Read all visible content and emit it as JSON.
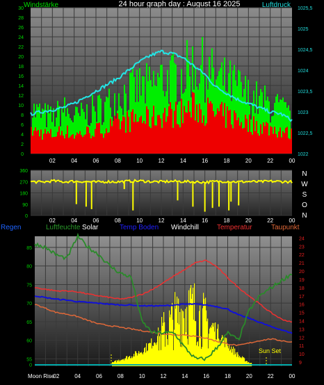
{
  "top": {
    "title": "24 hour graph day : August 16 2025",
    "left_label": "Windstärke",
    "right_label": "Luftdruck",
    "left_ticks": [
      "0",
      "2",
      "4",
      "6",
      "8",
      "10",
      "12",
      "14",
      "16",
      "18",
      "20",
      "22",
      "24",
      "26",
      "28",
      "30"
    ],
    "right_ticks": [
      "1022",
      "1022,5",
      "1023",
      "1023,5",
      "1024",
      "1024,5",
      "1025",
      "1025,5"
    ],
    "x_ticks": [
      "02",
      "04",
      "06",
      "08",
      "10",
      "12",
      "14",
      "16",
      "18",
      "20",
      "22",
      "00"
    ]
  },
  "mid": {
    "left_ticks": [
      "0",
      "90",
      "180",
      "270",
      "360"
    ],
    "right_labels": [
      "N",
      "W",
      "S",
      "O",
      "N"
    ],
    "x_ticks": [
      "02",
      "04",
      "06",
      "08",
      "10",
      "12",
      "14",
      "16",
      "18",
      "20",
      "22",
      "00"
    ]
  },
  "bottom": {
    "legend": [
      "Regen",
      "Luftfeuchte",
      "Solar",
      "Temp Boden",
      "Windchill",
      "Temperatur",
      "Taupunkt"
    ],
    "left_ticks": [
      "0",
      "55",
      "60",
      "65",
      "70",
      "75",
      "80",
      "85"
    ],
    "right_ticks": [
      "9",
      "10",
      "11",
      "12",
      "13",
      "14",
      "15",
      "16",
      "17",
      "18",
      "19",
      "20",
      "21",
      "22",
      "23",
      "24"
    ],
    "x_ticks": [
      "Moon Rise",
      "02",
      "04",
      "06",
      "08",
      "10",
      "12",
      "14",
      "16",
      "18",
      "20",
      "22",
      "00"
    ],
    "sunset_label": "Sun Set"
  },
  "colors": {
    "gust": "#00ee00",
    "wind": "#ee0000",
    "pressure": "#22e6e6",
    "direction": "#ffff00",
    "humidity": "#2a8a2a",
    "solar": "#ffff00",
    "soil_temp": "#1010d8",
    "temperature": "#ee3030",
    "dewpoint": "#e06838",
    "rain": "#00aaaa"
  },
  "chart_data": [
    {
      "type": "bar",
      "ylim": [
        0,
        30
      ],
      "y2lim": [
        1022,
        1025.5
      ],
      "x": [
        0,
        1,
        2,
        3,
        4,
        5,
        6,
        7,
        8,
        9,
        10,
        11,
        12,
        13,
        14,
        15,
        16,
        17,
        18,
        19,
        20,
        21,
        22,
        23,
        24
      ],
      "series": [
        {
          "name": "Windstärke",
          "values": [
            10,
            9,
            8,
            10,
            8,
            9,
            10,
            11,
            13,
            14,
            15,
            15,
            17,
            17,
            18,
            20,
            19,
            17,
            16,
            15,
            13,
            12,
            11,
            10,
            8
          ]
        },
        {
          "name": "Luftdruck",
          "values": [
            1022.95,
            1023.0,
            1023.05,
            1023.1,
            1023.2,
            1023.35,
            1023.5,
            1023.65,
            1023.8,
            1024.0,
            1024.2,
            1024.35,
            1024.45,
            1024.4,
            1024.3,
            1024.1,
            1023.9,
            1023.6,
            1023.45,
            1023.3,
            1023.2,
            1023.1,
            1023.0,
            1022.95,
            1022.8
          ]
        }
      ]
    },
    {
      "type": "line",
      "ylim": [
        0,
        360
      ],
      "x": [
        0,
        1,
        2,
        3,
        4,
        5,
        6,
        7,
        8,
        9,
        10,
        11,
        12,
        13,
        14,
        15,
        16,
        17,
        18,
        19,
        20,
        21,
        22,
        23,
        24
      ],
      "series": [
        {
          "name": "wind direction",
          "values": [
            270,
            265,
            275,
            268,
            272,
            270,
            265,
            270,
            268,
            272,
            275,
            270,
            268,
            272,
            270,
            268,
            265,
            270,
            272,
            268,
            270,
            268,
            272,
            270,
            268
          ]
        }
      ]
    },
    {
      "type": "line",
      "x": [
        0,
        1,
        2,
        3,
        4,
        5,
        6,
        7,
        8,
        9,
        10,
        11,
        12,
        13,
        14,
        15,
        16,
        17,
        18,
        19,
        20,
        21,
        22,
        23,
        24
      ],
      "ylim": [
        53,
        88
      ],
      "y2lim": [
        8.5,
        24.2
      ],
      "series": [
        {
          "name": "Luftfeuchte",
          "values": [
            86,
            85,
            83,
            82,
            88,
            85,
            83,
            80,
            78,
            77,
            65,
            62,
            62,
            62,
            58,
            55,
            55,
            58,
            62,
            60,
            68,
            72,
            74,
            76,
            78
          ]
        },
        {
          "name": "Solar",
          "values": [
            0,
            0,
            0,
            0,
            0,
            0,
            0,
            0.03,
            0.08,
            0.12,
            0.18,
            0.28,
            0.45,
            0.6,
            0.75,
            0.7,
            0.55,
            0.4,
            0.25,
            0.12,
            0.04,
            0,
            0,
            0,
            0
          ]
        },
        {
          "name": "Temp Boden",
          "values": [
            17.0,
            16.8,
            16.6,
            16.5,
            16.3,
            16.2,
            16.1,
            16.0,
            15.9,
            15.9,
            15.8,
            15.8,
            15.8,
            15.9,
            16.0,
            16.0,
            15.9,
            15.7,
            15.4,
            14.7,
            14.3,
            13.8,
            13.3,
            12.9,
            12.5
          ]
        },
        {
          "name": "Temperatur",
          "values": [
            18.0,
            17.8,
            17.6,
            17.6,
            17.5,
            17.2,
            17.0,
            16.8,
            16.6,
            16.8,
            17.2,
            17.8,
            18.6,
            19.4,
            20.2,
            21.0,
            21.3,
            20.5,
            19.2,
            18.0,
            17.0,
            16.0,
            15.0,
            14.2,
            13.8
          ]
        },
        {
          "name": "Taupunkt",
          "values": [
            16.0,
            15.5,
            15.0,
            14.8,
            14.5,
            14.0,
            13.6,
            13.4,
            13.2,
            13.0,
            12.8,
            12.6,
            12.4,
            12.3,
            12.3,
            12.1,
            11.9,
            11.5,
            11.2,
            11.0,
            11.3,
            11.6,
            11.8,
            11.6,
            11.4
          ]
        },
        {
          "name": "Regen",
          "values": [
            0,
            0,
            0,
            0,
            0,
            0,
            0,
            0,
            0,
            0,
            0,
            0,
            0,
            0,
            0,
            0,
            0,
            0,
            0,
            0,
            0,
            0,
            0,
            0,
            0
          ]
        }
      ]
    }
  ]
}
